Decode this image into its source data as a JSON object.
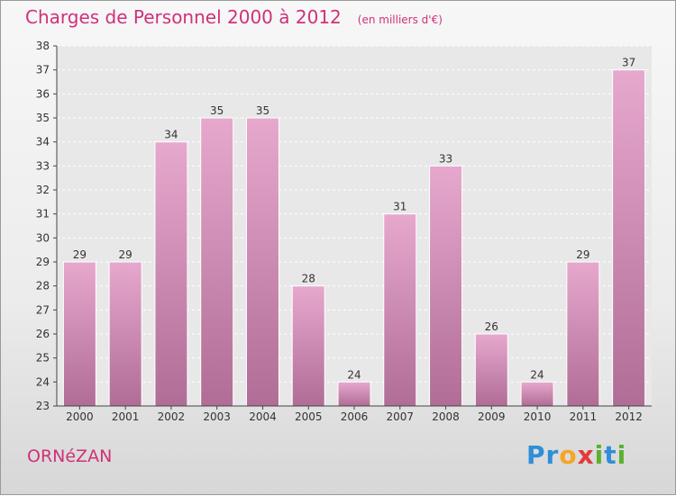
{
  "title": "Charges de Personnel 2000 à 2012",
  "subtitle": "(en milliers d'€)",
  "commune": "ORNéZAN",
  "logo_letters": [
    {
      "ch": "P",
      "color": "#2e8fd8"
    },
    {
      "ch": "r",
      "color": "#2e8fd8"
    },
    {
      "ch": "o",
      "color": "#f5a623"
    },
    {
      "ch": "x",
      "color": "#e23a3a"
    },
    {
      "ch": "i",
      "color": "#5cb030"
    },
    {
      "ch": "t",
      "color": "#2e8fd8"
    },
    {
      "ch": "i",
      "color": "#5cb030"
    }
  ],
  "colors": {
    "accent": "#d0307a",
    "bar_top": "#e7a8ce",
    "bar_bottom": "#b06d96"
  },
  "chart_data": {
    "type": "bar",
    "categories": [
      "2000",
      "2001",
      "2002",
      "2003",
      "2004",
      "2005",
      "2006",
      "2007",
      "2008",
      "2009",
      "2010",
      "2011",
      "2012"
    ],
    "values": [
      29,
      29,
      34,
      35,
      35,
      28,
      24,
      31,
      33,
      26,
      24,
      29,
      37
    ],
    "title": "Charges de Personnel 2000 à 2012",
    "xlabel": "",
    "ylabel": "",
    "ylim": [
      23,
      38
    ],
    "yticks": [
      23,
      24,
      25,
      26,
      27,
      28,
      29,
      30,
      31,
      32,
      33,
      34,
      35,
      36,
      37,
      38
    ],
    "grid": true
  }
}
